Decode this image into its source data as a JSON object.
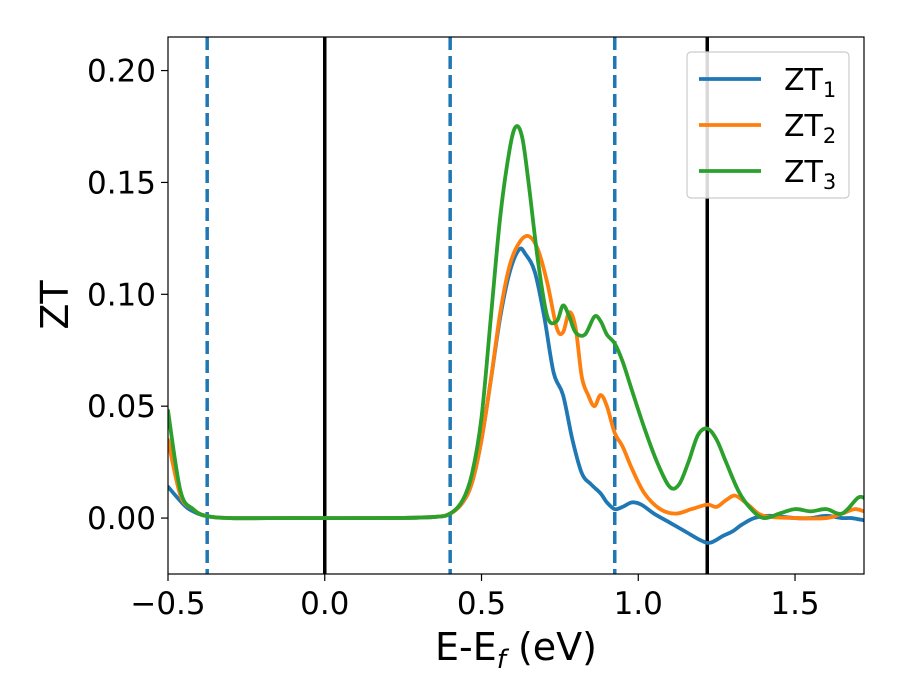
{
  "chart_data": {
    "type": "line",
    "xlabel": "E-E",
    "xlabel_sub": "f",
    "xlabel_unit": " (eV)",
    "ylabel": "ZT",
    "xlim": [
      -0.5,
      1.72
    ],
    "ylim": [
      -0.025,
      0.215
    ],
    "xticks": [
      -0.5,
      0.0,
      0.5,
      1.0,
      1.5
    ],
    "xtick_labels": [
      "−0.5",
      "0.0",
      "0.5",
      "1.0",
      "1.5"
    ],
    "yticks": [
      0.0,
      0.05,
      0.1,
      0.15,
      0.2
    ],
    "ytick_labels": [
      "0.00",
      "0.05",
      "0.10",
      "0.15",
      "0.20"
    ],
    "grid": false,
    "legend_position": "top-right",
    "vlines": [
      {
        "x": -0.375,
        "style": "dashed",
        "color": "#1f77b4"
      },
      {
        "x": 0.0,
        "style": "solid",
        "color": "#000000"
      },
      {
        "x": 0.4,
        "style": "dashed",
        "color": "#1f77b4"
      },
      {
        "x": 0.925,
        "style": "dashed",
        "color": "#1f77b4"
      },
      {
        "x": 1.22,
        "style": "solid",
        "color": "#000000"
      }
    ],
    "series": [
      {
        "name": "ZT",
        "name_sub": "1",
        "color": "#1f77b4",
        "x": [
          -0.5,
          -0.45,
          -0.42,
          -0.38,
          -0.3,
          -0.1,
          0.2,
          0.35,
          0.4,
          0.44,
          0.47,
          0.5,
          0.53,
          0.56,
          0.59,
          0.62,
          0.64,
          0.67,
          0.7,
          0.73,
          0.76,
          0.79,
          0.82,
          0.85,
          0.88,
          0.9,
          0.925,
          0.95,
          0.98,
          1.01,
          1.05,
          1.1,
          1.15,
          1.2,
          1.23,
          1.27,
          1.3,
          1.33,
          1.37,
          1.42,
          1.5,
          1.55,
          1.6,
          1.65,
          1.68,
          1.72
        ],
        "y": [
          0.014,
          0.006,
          0.003,
          0.001,
          0.0,
          0.0,
          0.0,
          0.0005,
          0.002,
          0.007,
          0.016,
          0.035,
          0.062,
          0.09,
          0.11,
          0.12,
          0.118,
          0.11,
          0.09,
          0.065,
          0.055,
          0.035,
          0.02,
          0.015,
          0.011,
          0.007,
          0.004,
          0.005,
          0.007,
          0.006,
          0.002,
          -0.002,
          -0.006,
          -0.01,
          -0.011,
          -0.008,
          -0.006,
          -0.003,
          0.0,
          0.001,
          0.0,
          0.0,
          0.001,
          0.0,
          0.0,
          -0.001
        ]
      },
      {
        "name": "ZT",
        "name_sub": "2",
        "color": "#ff7f0e",
        "x": [
          -0.5,
          -0.46,
          -0.42,
          -0.38,
          -0.3,
          -0.1,
          0.2,
          0.35,
          0.4,
          0.44,
          0.47,
          0.5,
          0.53,
          0.56,
          0.59,
          0.62,
          0.65,
          0.68,
          0.71,
          0.74,
          0.76,
          0.78,
          0.8,
          0.82,
          0.84,
          0.86,
          0.88,
          0.9,
          0.925,
          0.95,
          0.98,
          1.02,
          1.07,
          1.12,
          1.17,
          1.22,
          1.25,
          1.28,
          1.31,
          1.35,
          1.4,
          1.5,
          1.6,
          1.65,
          1.69,
          1.72
        ],
        "y": [
          0.035,
          0.01,
          0.004,
          0.001,
          0.0,
          0.0,
          0.0,
          0.0005,
          0.002,
          0.007,
          0.016,
          0.035,
          0.062,
          0.092,
          0.113,
          0.123,
          0.126,
          0.12,
          0.105,
          0.085,
          0.083,
          0.092,
          0.085,
          0.063,
          0.055,
          0.05,
          0.055,
          0.05,
          0.038,
          0.032,
          0.022,
          0.011,
          0.004,
          0.002,
          0.004,
          0.006,
          0.005,
          0.008,
          0.01,
          0.006,
          0.001,
          0.0,
          0.0,
          0.002,
          0.004,
          0.003
        ]
      },
      {
        "name": "ZT",
        "name_sub": "3",
        "color": "#2ca02c",
        "x": [
          -0.5,
          -0.46,
          -0.42,
          -0.38,
          -0.3,
          -0.1,
          0.2,
          0.35,
          0.4,
          0.44,
          0.47,
          0.5,
          0.53,
          0.56,
          0.59,
          0.61,
          0.63,
          0.65,
          0.68,
          0.71,
          0.74,
          0.76,
          0.78,
          0.8,
          0.83,
          0.86,
          0.88,
          0.9,
          0.925,
          0.95,
          0.98,
          1.02,
          1.06,
          1.1,
          1.13,
          1.16,
          1.19,
          1.22,
          1.25,
          1.28,
          1.32,
          1.36,
          1.4,
          1.45,
          1.5,
          1.55,
          1.6,
          1.65,
          1.7,
          1.72
        ],
        "y": [
          0.048,
          0.012,
          0.004,
          0.001,
          0.0,
          0.0,
          0.0,
          0.0005,
          0.002,
          0.008,
          0.02,
          0.045,
          0.09,
          0.135,
          0.165,
          0.175,
          0.17,
          0.15,
          0.115,
          0.09,
          0.088,
          0.095,
          0.09,
          0.083,
          0.082,
          0.09,
          0.088,
          0.082,
          0.078,
          0.07,
          0.057,
          0.04,
          0.025,
          0.014,
          0.015,
          0.025,
          0.037,
          0.04,
          0.035,
          0.025,
          0.012,
          0.004,
          0.0,
          0.002,
          0.004,
          0.003,
          0.004,
          0.002,
          0.009,
          0.009
        ]
      }
    ]
  }
}
